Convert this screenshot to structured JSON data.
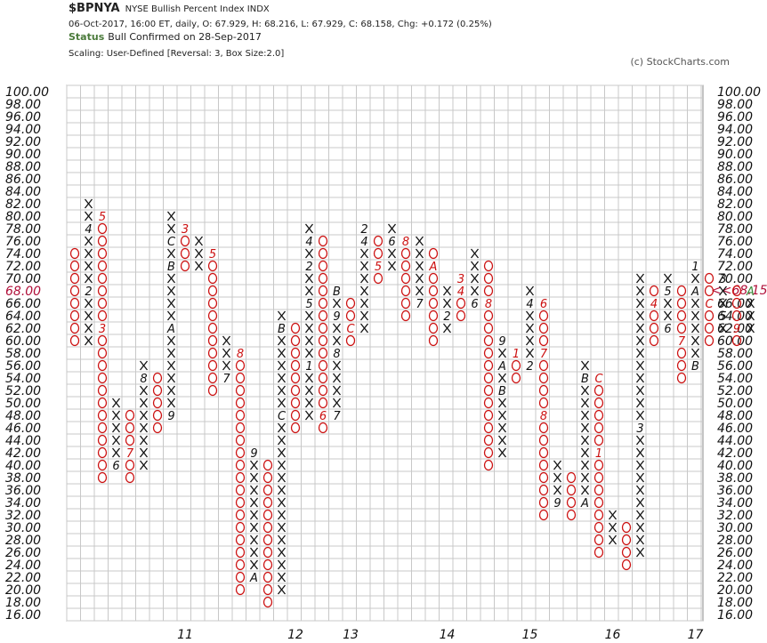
{
  "header": {
    "symbol": "$BPNYA",
    "description": "NYSE Bullish Percent Index  INDX",
    "quote": "06-Oct-2017, 16:00 ET, daily, O: 67.929, H: 68.216, L: 67.929, C: 68.158, Chg: +0.172 (0.25%)",
    "status_label": "Status",
    "status_value": "Bull Confirmed on 28-Sep-2017",
    "scaling": "Scaling: User-Defined [Reversal: 3, Box Size:2.0]",
    "copyright": "(c) StockCharts.com"
  },
  "colors": {
    "x": "#111111",
    "o": "#cc1111",
    "grid": "#c8c8c8",
    "last": "#b0103a",
    "cursor": "#3a8a3a"
  },
  "chart_data": {
    "type": "point-and-figure",
    "box_size": 2.0,
    "reversal": 3,
    "ylim": [
      16,
      100
    ],
    "last_value": 68.15,
    "last_tag": "68.00",
    "last_tag_right": "<<68.15",
    "yticks": [
      "100.00",
      "98.00",
      "96.00",
      "94.00",
      "92.00",
      "90.00",
      "88.00",
      "86.00",
      "84.00",
      "82.00",
      "80.00",
      "78.00",
      "76.00",
      "74.00",
      "72.00",
      "70.00",
      "68.00",
      "66.00",
      "64.00",
      "62.00",
      "60.00",
      "58.00",
      "56.00",
      "54.00",
      "52.00",
      "50.00",
      "48.00",
      "46.00",
      "44.00",
      "42.00",
      "40.00",
      "38.00",
      "36.00",
      "34.00",
      "32.00",
      "30.00",
      "28.00",
      "26.00",
      "24.00",
      "22.00",
      "20.00",
      "18.00",
      "16.00"
    ],
    "year_labels": [
      {
        "label": "11",
        "column": 8
      },
      {
        "label": "12",
        "column": 16
      },
      {
        "label": "13",
        "column": 20
      },
      {
        "label": "14",
        "column": 27
      },
      {
        "label": "15",
        "column": 33
      },
      {
        "label": "16",
        "column": 39
      },
      {
        "label": "17",
        "column": 45
      }
    ],
    "columns": [
      {
        "type": "O",
        "low": 60,
        "high": 74
      },
      {
        "type": "X",
        "low": 60,
        "high": 82
      },
      {
        "type": "O",
        "low": 38,
        "high": 80
      },
      {
        "type": "X",
        "low": 40,
        "high": 50
      },
      {
        "type": "O",
        "low": 38,
        "high": 48
      },
      {
        "type": "X",
        "low": 40,
        "high": 56
      },
      {
        "type": "O",
        "low": 46,
        "high": 54
      },
      {
        "type": "X",
        "low": 48,
        "high": 80
      },
      {
        "type": "O",
        "low": 72,
        "high": 78
      },
      {
        "type": "X",
        "low": 72,
        "high": 76
      },
      {
        "type": "O",
        "low": 52,
        "high": 74
      },
      {
        "type": "X",
        "low": 54,
        "high": 60
      },
      {
        "type": "O",
        "low": 20,
        "high": 58
      },
      {
        "type": "X",
        "low": 22,
        "high": 42
      },
      {
        "type": "O",
        "low": 18,
        "high": 40
      },
      {
        "type": "X",
        "low": 20,
        "high": 64
      },
      {
        "type": "O",
        "low": 46,
        "high": 62
      },
      {
        "type": "X",
        "low": 48,
        "high": 78
      },
      {
        "type": "O",
        "low": 46,
        "high": 76
      },
      {
        "type": "X",
        "low": 48,
        "high": 68
      },
      {
        "type": "O",
        "low": 60,
        "high": 66
      },
      {
        "type": "X",
        "low": 62,
        "high": 78
      },
      {
        "type": "O",
        "low": 70,
        "high": 76
      },
      {
        "type": "X",
        "low": 72,
        "high": 78
      },
      {
        "type": "O",
        "low": 64,
        "high": 76
      },
      {
        "type": "X",
        "low": 66,
        "high": 76
      },
      {
        "type": "O",
        "low": 60,
        "high": 74
      },
      {
        "type": "X",
        "low": 62,
        "high": 68
      },
      {
        "type": "O",
        "low": 64,
        "high": 70
      },
      {
        "type": "X",
        "low": 66,
        "high": 74
      },
      {
        "type": "O",
        "low": 40,
        "high": 72
      },
      {
        "type": "X",
        "low": 42,
        "high": 60
      },
      {
        "type": "O",
        "low": 54,
        "high": 58
      },
      {
        "type": "X",
        "low": 56,
        "high": 68
      },
      {
        "type": "O",
        "low": 32,
        "high": 66
      },
      {
        "type": "X",
        "low": 34,
        "high": 40
      },
      {
        "type": "O",
        "low": 32,
        "high": 38
      },
      {
        "type": "X",
        "low": 34,
        "high": 56
      },
      {
        "type": "O",
        "low": 26,
        "high": 54
      },
      {
        "type": "X",
        "low": 28,
        "high": 32
      },
      {
        "type": "O",
        "low": 24,
        "high": 30
      },
      {
        "type": "X",
        "low": 26,
        "high": 70
      },
      {
        "type": "O",
        "low": 60,
        "high": 68
      },
      {
        "type": "X",
        "low": 62,
        "high": 70
      },
      {
        "type": "O",
        "low": 54,
        "high": 68
      },
      {
        "type": "X",
        "low": 56,
        "high": 72
      },
      {
        "type": "O",
        "low": 60,
        "high": 70
      },
      {
        "type": "X",
        "low": 62,
        "high": 70
      },
      {
        "type": "O",
        "low": 60,
        "high": 68
      },
      {
        "type": "X",
        "low": 62,
        "high": 66
      }
    ],
    "annotations": [
      {
        "col": 1,
        "y": 68,
        "t": "2"
      },
      {
        "col": 1,
        "y": 78,
        "t": "4"
      },
      {
        "col": 2,
        "y": 62,
        "t": "3"
      },
      {
        "col": 2,
        "y": 80,
        "t": "5"
      },
      {
        "col": 3,
        "y": 40,
        "t": "6"
      },
      {
        "col": 4,
        "y": 42,
        "t": "7"
      },
      {
        "col": 5,
        "y": 54,
        "t": "8"
      },
      {
        "col": 7,
        "y": 48,
        "t": "9"
      },
      {
        "col": 7,
        "y": 62,
        "t": "A"
      },
      {
        "col": 7,
        "y": 72,
        "t": "B"
      },
      {
        "col": 7,
        "y": 76,
        "t": "C"
      },
      {
        "col": 8,
        "y": 78,
        "t": "3"
      },
      {
        "col": 9,
        "y": 70,
        "t": "4"
      },
      {
        "col": 10,
        "y": 74,
        "t": "5"
      },
      {
        "col": 11,
        "y": 62,
        "t": "6"
      },
      {
        "col": 11,
        "y": 54,
        "t": "7"
      },
      {
        "col": 12,
        "y": 58,
        "t": "8"
      },
      {
        "col": 13,
        "y": 42,
        "t": "9"
      },
      {
        "col": 13,
        "y": 22,
        "t": "A"
      },
      {
        "col": 15,
        "y": 62,
        "t": "B"
      },
      {
        "col": 15,
        "y": 48,
        "t": "C"
      },
      {
        "col": 17,
        "y": 56,
        "t": "1"
      },
      {
        "col": 17,
        "y": 72,
        "t": "2"
      },
      {
        "col": 17,
        "y": 76,
        "t": "4"
      },
      {
        "col": 17,
        "y": 66,
        "t": "5"
      },
      {
        "col": 18,
        "y": 48,
        "t": "6"
      },
      {
        "col": 19,
        "y": 48,
        "t": "7"
      },
      {
        "col": 19,
        "y": 64,
        "t": "9"
      },
      {
        "col": 19,
        "y": 58,
        "t": "8"
      },
      {
        "col": 19,
        "y": 68,
        "t": "B"
      },
      {
        "col": 20,
        "y": 62,
        "t": "C"
      },
      {
        "col": 20,
        "y": 68,
        "t": "1"
      },
      {
        "col": 21,
        "y": 78,
        "t": "2"
      },
      {
        "col": 21,
        "y": 76,
        "t": "4"
      },
      {
        "col": 22,
        "y": 72,
        "t": "5"
      },
      {
        "col": 23,
        "y": 76,
        "t": "6"
      },
      {
        "col": 24,
        "y": 76,
        "t": "8"
      },
      {
        "col": 25,
        "y": 66,
        "t": "7"
      },
      {
        "col": 26,
        "y": 72,
        "t": "A"
      },
      {
        "col": 27,
        "y": 74,
        "t": "1"
      },
      {
        "col": 27,
        "y": 64,
        "t": "2"
      },
      {
        "col": 28,
        "y": 70,
        "t": "3"
      },
      {
        "col": 28,
        "y": 68,
        "t": "4"
      },
      {
        "col": 29,
        "y": 66,
        "t": "6"
      },
      {
        "col": 30,
        "y": 74,
        "t": "7"
      },
      {
        "col": 30,
        "y": 66,
        "t": "8"
      },
      {
        "col": 31,
        "y": 60,
        "t": "9"
      },
      {
        "col": 31,
        "y": 56,
        "t": "A"
      },
      {
        "col": 31,
        "y": 52,
        "t": "B"
      },
      {
        "col": 32,
        "y": 58,
        "t": "1"
      },
      {
        "col": 33,
        "y": 56,
        "t": "2"
      },
      {
        "col": 33,
        "y": 66,
        "t": "4"
      },
      {
        "col": 34,
        "y": 66,
        "t": "6"
      },
      {
        "col": 34,
        "y": 58,
        "t": "7"
      },
      {
        "col": 34,
        "y": 48,
        "t": "8"
      },
      {
        "col": 35,
        "y": 34,
        "t": "9"
      },
      {
        "col": 37,
        "y": 34,
        "t": "A"
      },
      {
        "col": 37,
        "y": 54,
        "t": "B"
      },
      {
        "col": 38,
        "y": 54,
        "t": "C"
      },
      {
        "col": 38,
        "y": 42,
        "t": "1"
      },
      {
        "col": 39,
        "y": 26,
        "t": "2"
      },
      {
        "col": 41,
        "y": 46,
        "t": "3"
      },
      {
        "col": 42,
        "y": 66,
        "t": "4"
      },
      {
        "col": 43,
        "y": 68,
        "t": "5"
      },
      {
        "col": 43,
        "y": 62,
        "t": "6"
      },
      {
        "col": 44,
        "y": 60,
        "t": "7"
      },
      {
        "col": 44,
        "y": 70,
        "t": "8"
      },
      {
        "col": 45,
        "y": 56,
        "t": "B"
      },
      {
        "col": 45,
        "y": 68,
        "t": "A"
      },
      {
        "col": 45,
        "y": 72,
        "t": "1"
      },
      {
        "col": 46,
        "y": 66,
        "t": "C"
      },
      {
        "col": 47,
        "y": 70,
        "t": "3"
      },
      {
        "col": 47,
        "y": 64,
        "t": "5"
      },
      {
        "col": 47,
        "y": 60,
        "t": "8"
      },
      {
        "col": 48,
        "y": 62,
        "t": "9"
      }
    ],
    "cursor_annotation": {
      "col": 49,
      "y": 68,
      "t": "A"
    }
  }
}
